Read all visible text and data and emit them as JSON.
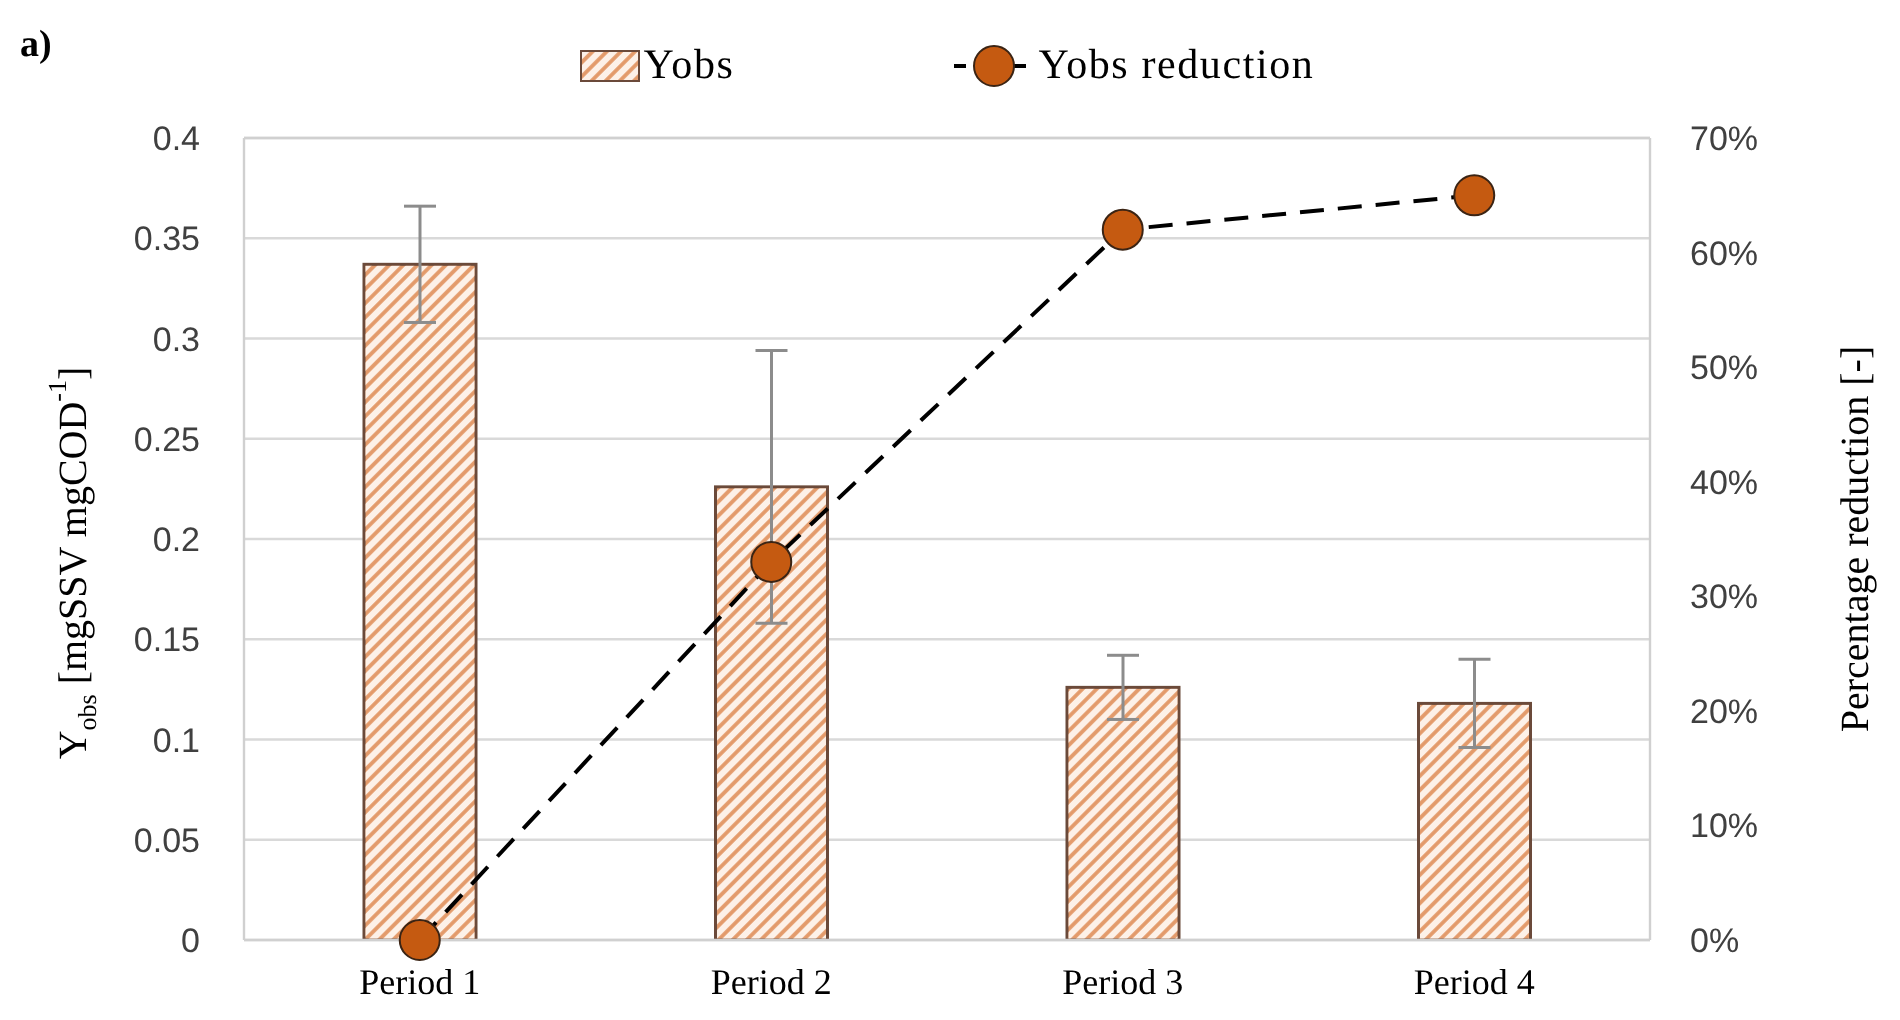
{
  "chart_data": {
    "type": "bar",
    "title": "a)",
    "categories": [
      "Period 1",
      "Period 2",
      "Period 3",
      "Period 4"
    ],
    "series": [
      {
        "name": "Yobs",
        "color": "#e39a6a",
        "values": [
          0.337,
          0.226,
          0.126,
          0.118
        ],
        "errors": [
          0.029,
          0.068,
          0.016,
          0.022
        ]
      },
      {
        "name": "Yobs reduction",
        "type": "line",
        "axis": "y2",
        "color": "#c55a11",
        "values": [
          0,
          33,
          62,
          65
        ]
      }
    ],
    "ylabel": "Y$_{obs}$ [mgSSV mgCOD$^{-1}$]",
    "y2label": "Percentage reduction [-]",
    "ylim": [
      0,
      0.4
    ],
    "yticks": [
      0,
      0.05,
      0.1,
      0.15,
      0.2,
      0.25,
      0.3,
      0.35,
      0.4
    ],
    "y2lim": [
      0,
      70
    ],
    "y2ticks": [
      {
        "value": 0,
        "label": "0%"
      },
      {
        "value": 10,
        "label": "10%"
      },
      {
        "value": 20,
        "label": "20%"
      },
      {
        "value": 30,
        "label": "30%"
      },
      {
        "value": 40,
        "label": "40%"
      },
      {
        "value": 50,
        "label": "50%"
      },
      {
        "value": 60,
        "label": "60%"
      },
      {
        "value": 70,
        "label": "70%"
      }
    ],
    "grid": "y",
    "legend": "top",
    "marker": "circle",
    "line_style": "dashed"
  }
}
